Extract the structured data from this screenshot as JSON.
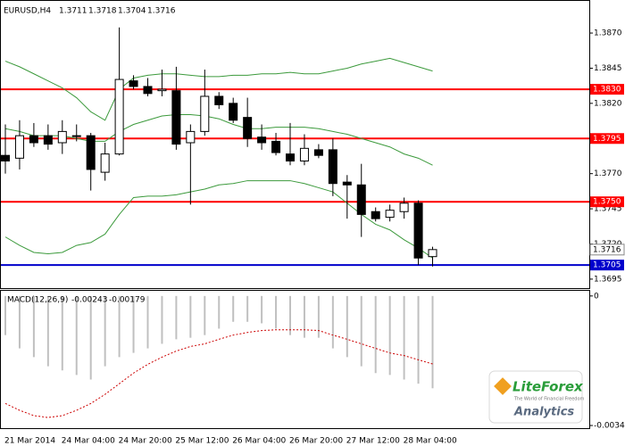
{
  "chart_data": [
    {
      "type": "candlestick",
      "title": "EURUSD,H4",
      "categories": [
        "21 Mar 2014",
        null,
        null,
        null,
        "24 Mar 04:00",
        null,
        null,
        null,
        "24 Mar 20:00",
        null,
        null,
        null,
        "25 Mar 12:00",
        null,
        null,
        null,
        "26 Mar 04:00",
        null,
        null,
        null,
        "26 Mar 20:00",
        null,
        null,
        null,
        "27 Mar 12:00",
        null,
        null,
        null,
        "28 Mar 04:00",
        null,
        null
      ],
      "open": [
        1.3783,
        1.3781,
        1.3797,
        1.3797,
        1.3792,
        1.3797,
        1.3797,
        1.3771,
        1.3784,
        1.3836,
        1.3832,
        1.3829,
        1.3829,
        1.3792,
        1.38,
        1.3825,
        1.382,
        1.381,
        1.3796,
        1.3793,
        1.3784,
        1.3779,
        1.3787,
        1.3787,
        1.3764,
        1.3762,
        1.3743,
        1.3739,
        1.3743,
        1.3749,
        1.3711
      ],
      "high": [
        1.3805,
        1.3808,
        1.3806,
        1.3805,
        1.3808,
        1.3805,
        1.3799,
        1.3792,
        1.3874,
        1.384,
        1.3838,
        1.3844,
        1.3846,
        1.3805,
        1.3844,
        1.3828,
        1.3824,
        1.3824,
        1.3805,
        1.3799,
        1.3806,
        1.3798,
        1.3791,
        1.3795,
        1.3769,
        1.3777,
        1.3746,
        1.3748,
        1.3753,
        1.3751,
        1.3718
      ],
      "low": [
        1.377,
        1.3773,
        1.3789,
        1.3787,
        1.3784,
        1.3793,
        1.3758,
        1.3765,
        1.3783,
        1.383,
        1.3825,
        1.3825,
        1.3787,
        1.3748,
        1.3797,
        1.3816,
        1.3806,
        1.3789,
        1.3787,
        1.3783,
        1.3776,
        1.3776,
        1.3781,
        1.3754,
        1.3738,
        1.3725,
        1.3736,
        1.3736,
        1.3738,
        1.3705,
        1.3704
      ],
      "close": [
        1.3779,
        1.3797,
        1.3792,
        1.3791,
        1.38,
        1.3797,
        1.3773,
        1.3784,
        1.3837,
        1.3832,
        1.3827,
        1.383,
        1.3791,
        1.38,
        1.3825,
        1.3819,
        1.3808,
        1.3795,
        1.3792,
        1.3785,
        1.3779,
        1.3788,
        1.3783,
        1.3763,
        1.3762,
        1.3741,
        1.3738,
        1.3744,
        1.3749,
        1.371,
        1.3716
      ],
      "up_color": "#ffffff",
      "down_color": "#000000",
      "series": [
        {
          "color": "#3c9a3c",
          "values": [
            1.385,
            1.3846,
            1.3841,
            1.3836,
            1.3831,
            1.3824,
            1.3814,
            1.3808,
            1.383,
            1.3838,
            1.384,
            1.3841,
            1.3841,
            1.384,
            1.3839,
            1.3839,
            1.384,
            1.384,
            1.3841,
            1.3841,
            1.3842,
            1.3841,
            1.3841,
            1.3843,
            1.3845,
            1.3848,
            1.385,
            1.3852,
            1.3849,
            1.3846,
            1.3843
          ]
        },
        {
          "color": "#3c9a3c",
          "values": [
            1.3802,
            1.38,
            1.3797,
            1.3797,
            1.3797,
            1.3795,
            1.3793,
            1.3793,
            1.38,
            1.3805,
            1.3808,
            1.3811,
            1.3812,
            1.3812,
            1.3811,
            1.3809,
            1.3805,
            1.3802,
            1.3802,
            1.3803,
            1.3803,
            1.3803,
            1.3802,
            1.38,
            1.3798,
            1.3795,
            1.3792,
            1.3789,
            1.3784,
            1.3781,
            1.3776
          ]
        },
        {
          "color": "#3c9a3c",
          "values": [
            1.3725,
            1.3719,
            1.3714,
            1.3713,
            1.3714,
            1.3719,
            1.3721,
            1.3727,
            1.3741,
            1.3753,
            1.3754,
            1.3754,
            1.3755,
            1.3757,
            1.3759,
            1.3762,
            1.3763,
            1.3765,
            1.3765,
            1.3765,
            1.3765,
            1.3763,
            1.376,
            1.3757,
            1.3749,
            1.3741,
            1.3734,
            1.373,
            1.3723,
            1.3717,
            1.371
          ]
        }
      ],
      "levels": [
        {
          "value": 1.383,
          "label": "1.3830",
          "color": "#ff0000"
        },
        {
          "value": 1.3795,
          "label": "1.3795",
          "color": "#ff0000"
        },
        {
          "value": 1.375,
          "label": "1.3750",
          "color": "#ff0000"
        },
        {
          "value": 1.3705,
          "label": "1.3705",
          "color": "#0000cc"
        }
      ],
      "ylim": [
        1.36886,
        1.38935
      ],
      "yticks": [
        {
          "value": 1.387,
          "label": "1.3870"
        },
        {
          "value": 1.3845,
          "label": "1.3845"
        },
        {
          "value": 1.382,
          "label": "1.3820"
        },
        {
          "value": 1.377,
          "label": "1.3770"
        },
        {
          "value": 1.3745,
          "label": "1.3745"
        },
        {
          "value": 1.372,
          "label": "1.3720"
        },
        {
          "value": 1.3695,
          "label": "1.3695"
        }
      ]
    },
    {
      "type": "macd",
      "title": "MACD(12,26,9)",
      "values": [
        -0.00103,
        -0.00138,
        -0.00161,
        -0.00185,
        -0.00196,
        -0.00208,
        -0.0022,
        -0.00185,
        -0.00161,
        -0.0015,
        -0.00138,
        -0.00126,
        -0.00114,
        -0.0011,
        -0.00103,
        -0.00086,
        -0.00068,
        -0.00068,
        -0.00072,
        -0.00086,
        -0.00103,
        -0.0011,
        -0.0011,
        -0.00138,
        -0.00161,
        -0.00185,
        -0.00203,
        -0.00208,
        -0.0022,
        -0.00231,
        -0.00243
      ],
      "color": "#c0c0c0",
      "signal": {
        "color": "#cc0000",
        "values": [
          -0.00283,
          -0.00301,
          -0.00315,
          -0.0032,
          -0.00315,
          -0.00301,
          -0.00283,
          -0.00259,
          -0.00231,
          -0.00203,
          -0.0018,
          -0.00161,
          -0.00145,
          -0.00133,
          -0.00126,
          -0.00114,
          -0.00103,
          -0.00096,
          -0.00091,
          -0.00089,
          -0.00089,
          -0.00089,
          -0.00091,
          -0.00103,
          -0.00114,
          -0.00126,
          -0.00138,
          -0.0015,
          -0.00157,
          -0.00168,
          -0.00179
        ]
      },
      "ylim": [
        -0.00348,
        0.00016
      ],
      "yticks": [
        0,
        -0.00341
      ]
    }
  ],
  "logo": {
    "name": "LiteForex",
    "tagline": "The World of Financial Freedom",
    "product": "Analytics"
  }
}
